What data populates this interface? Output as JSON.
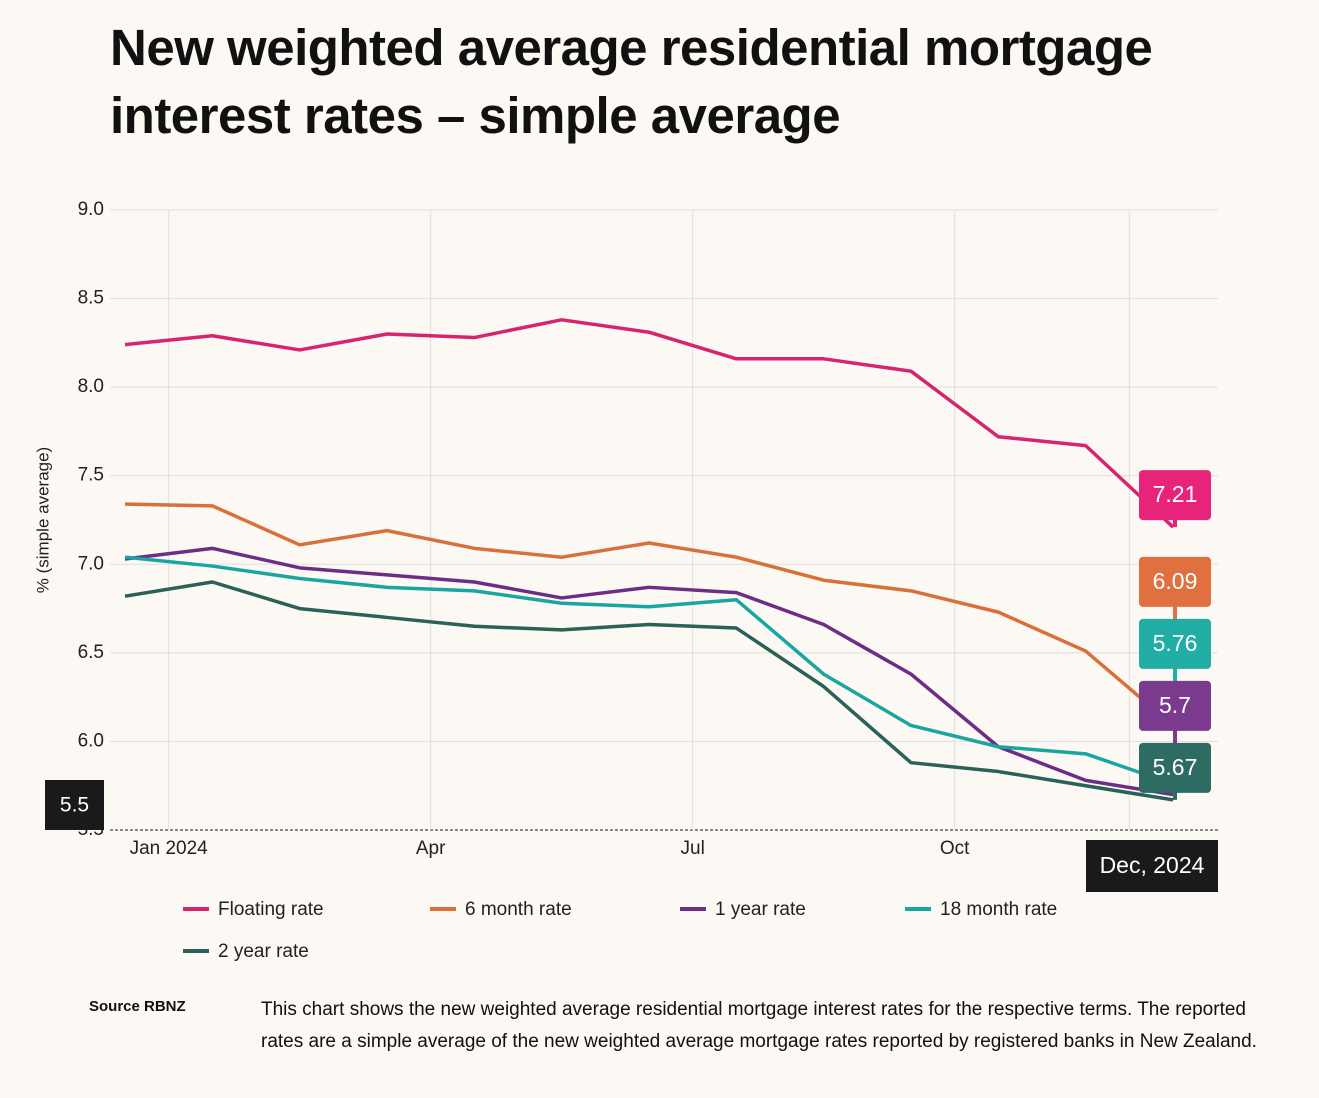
{
  "chart_data": {
    "type": "line",
    "title": "New weighted average residential mortgage interest rates – simple average",
    "y_label": "% (simple average)",
    "categories": [
      null,
      "Jan 2024",
      null,
      null,
      "Apr",
      null,
      null,
      "Jul",
      null,
      null,
      "Oct",
      null,
      "Dec"
    ],
    "series": [
      {
        "name": "Floating rate",
        "color": "#d6246e",
        "label_color": "#e8247a",
        "values": [
          8.24,
          8.29,
          8.21,
          8.3,
          8.28,
          8.38,
          8.31,
          8.16,
          8.16,
          8.09,
          7.72,
          7.67,
          7.21
        ]
      },
      {
        "name": "6 month rate",
        "color": "#d9703a",
        "label_color": "#e07040",
        "values": [
          7.34,
          7.33,
          7.11,
          7.19,
          7.09,
          7.04,
          7.12,
          7.04,
          6.91,
          6.85,
          6.73,
          6.51,
          6.09
        ]
      },
      {
        "name": "1 year rate",
        "color": "#6b2d86",
        "label_color": "#7a3a8e",
        "values": [
          7.03,
          7.09,
          6.98,
          6.94,
          6.9,
          6.81,
          6.87,
          6.84,
          6.66,
          6.38,
          5.97,
          5.78,
          5.7
        ]
      },
      {
        "name": "18 month rate",
        "color": "#1aa6a0",
        "label_color": "#22aea5",
        "values": [
          7.04,
          6.99,
          6.92,
          6.87,
          6.85,
          6.78,
          6.76,
          6.8,
          6.38,
          6.09,
          5.97,
          5.93,
          5.76
        ]
      },
      {
        "name": "2 year rate",
        "color": "#2a6158",
        "label_color": "#2e6b62",
        "values": [
          6.82,
          6.9,
          6.75,
          6.7,
          6.65,
          6.63,
          6.66,
          6.64,
          6.31,
          5.88,
          5.83,
          5.75,
          5.67
        ]
      }
    ],
    "ylim": [
      5.5,
      9.0
    ],
    "yticks": [
      5.5,
      6,
      6.5,
      7,
      7.5,
      8,
      8.5,
      9
    ],
    "ytick_labels": [
      "5.5",
      "6.0",
      "6.5",
      "7.0",
      "7.5",
      "8.0",
      "8.5",
      "9.0"
    ],
    "grid": true,
    "crosshair_x_label": "Dec, 2024",
    "crosshair_y_label": 5.5,
    "source": "Source RBNZ",
    "note": "This chart shows the new weighted average residential mortgage interest rates for the respective terms. The reported rates are a simple average of the new weighted average mortgage rates reported by registered banks in New Zealand."
  }
}
